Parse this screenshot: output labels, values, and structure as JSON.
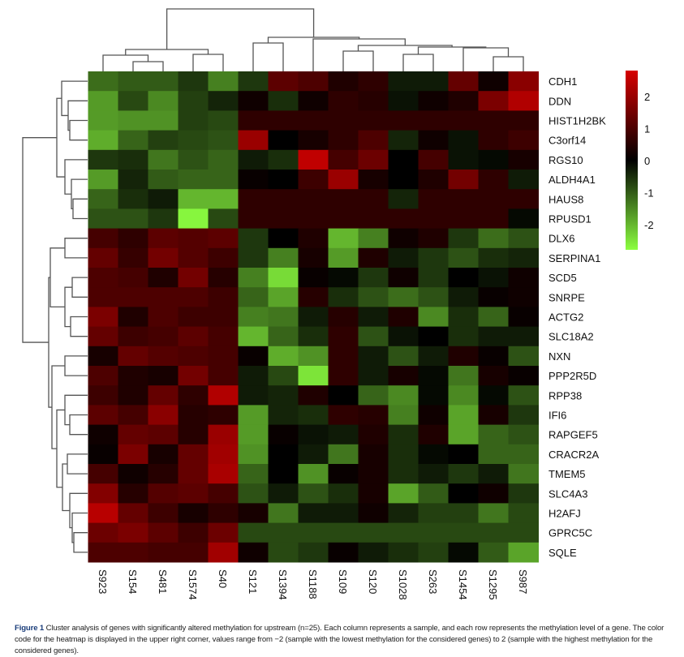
{
  "chart_data": {
    "type": "heatmap",
    "title": "",
    "columns": [
      "S923",
      "S154",
      "S481",
      "S1574",
      "S40",
      "S121",
      "S1394",
      "S1188",
      "S109",
      "S120",
      "S1028",
      "S263",
      "S1454",
      "S1295",
      "S987"
    ],
    "rows": [
      "CDH1",
      "DDN",
      "HIST1H2BK",
      "C3orf14",
      "RGS10",
      "ALDH4A1",
      "HAUS8",
      "RPUSD1",
      "DLX6",
      "SERPINA1",
      "SCD5",
      "SNRPE",
      "ACTG2",
      "SLC18A2",
      "NXN",
      "PPP2R5D",
      "RPP38",
      "IFI6",
      "RAPGEF5",
      "CRACR2A",
      "TMEM5",
      "SLC4A3",
      "H2AFJ",
      "GPRC5C",
      "SQLE"
    ],
    "values": [
      [
        -1.2,
        -1.0,
        -1.0,
        -0.6,
        -1.4,
        -0.6,
        1.2,
        1.0,
        0.4,
        0.6,
        -0.3,
        -0.3,
        1.3,
        0.2,
        1.8
      ],
      [
        -1.7,
        -0.8,
        -1.5,
        -0.7,
        -0.4,
        0.2,
        -0.5,
        0.2,
        0.6,
        0.5,
        -0.2,
        0.2,
        0.4,
        1.6,
        2.3
      ],
      [
        -1.7,
        -1.6,
        -1.6,
        -0.7,
        -0.8,
        0.6,
        0.6,
        0.6,
        0.6,
        0.6,
        0.6,
        0.6,
        0.6,
        0.6,
        0.6
      ],
      [
        -1.9,
        -1.1,
        -0.7,
        -0.8,
        -0.9,
        2.0,
        0.0,
        0.3,
        0.6,
        1.0,
        -0.4,
        0.2,
        -0.2,
        0.6,
        0.8
      ],
      [
        -0.6,
        -0.5,
        -1.3,
        -0.9,
        -1.1,
        -0.3,
        -0.5,
        2.5,
        0.9,
        1.4,
        0.0,
        0.9,
        -0.2,
        -0.1,
        0.3
      ],
      [
        -1.7,
        -0.4,
        -1.0,
        -1.1,
        -1.1,
        0.1,
        0.0,
        0.8,
        2.0,
        0.3,
        0.0,
        0.4,
        1.5,
        0.6,
        -0.3
      ],
      [
        -1.1,
        -0.5,
        -0.3,
        -2.0,
        -2.0,
        0.6,
        0.6,
        0.6,
        0.6,
        0.6,
        -0.4,
        0.6,
        0.6,
        0.6,
        0.6
      ],
      [
        -0.9,
        -0.9,
        -0.6,
        -2.7,
        -0.8,
        0.6,
        0.6,
        0.6,
        0.6,
        0.6,
        0.6,
        0.6,
        0.6,
        0.6,
        -0.1
      ],
      [
        0.9,
        0.6,
        1.2,
        1.1,
        1.2,
        -0.6,
        0.0,
        0.4,
        -2.0,
        -1.4,
        0.2,
        0.4,
        -0.6,
        -1.2,
        -0.9
      ],
      [
        1.3,
        0.7,
        1.5,
        1.1,
        0.8,
        -0.6,
        -1.4,
        0.3,
        -1.7,
        0.4,
        -0.3,
        -0.6,
        -0.9,
        -0.5,
        -0.4
      ],
      [
        1.0,
        0.9,
        0.4,
        1.5,
        0.5,
        -1.4,
        -2.4,
        0.1,
        -0.1,
        -0.6,
        0.2,
        -0.6,
        0.0,
        -0.2,
        0.2
      ],
      [
        1.0,
        1.0,
        1.0,
        1.0,
        0.8,
        -1.1,
        -1.8,
        0.5,
        -0.5,
        -0.9,
        -1.2,
        -0.9,
        -0.3,
        0.1,
        0.2
      ],
      [
        1.6,
        0.4,
        1.0,
        0.8,
        0.8,
        -1.4,
        -1.3,
        -0.3,
        0.5,
        -0.3,
        0.4,
        -1.5,
        -0.5,
        -1.1,
        0.1
      ],
      [
        1.3,
        0.8,
        0.9,
        1.2,
        0.9,
        -2.0,
        -1.1,
        -0.5,
        0.6,
        -0.9,
        -0.2,
        0.0,
        -0.5,
        -0.3,
        -0.3
      ],
      [
        0.3,
        1.3,
        1.1,
        1.0,
        0.9,
        0.1,
        -1.9,
        -1.6,
        0.6,
        -0.3,
        -0.9,
        -0.3,
        0.4,
        0.1,
        -0.9
      ],
      [
        1.0,
        0.4,
        0.3,
        1.5,
        0.9,
        -0.3,
        -0.8,
        -2.5,
        0.6,
        -0.3,
        0.3,
        -0.1,
        -1.3,
        0.3,
        0.1
      ],
      [
        0.8,
        0.4,
        1.3,
        0.6,
        2.3,
        -0.3,
        -0.4,
        0.4,
        0.0,
        -1.1,
        -1.5,
        -0.1,
        -1.5,
        -0.1,
        -0.9
      ],
      [
        1.2,
        0.9,
        1.8,
        0.5,
        0.6,
        -1.7,
        -0.4,
        -0.5,
        0.6,
        0.5,
        -1.4,
        0.2,
        -1.8,
        0.3,
        -0.6
      ],
      [
        0.2,
        1.3,
        1.2,
        0.5,
        2.0,
        -1.7,
        0.1,
        -0.2,
        -0.3,
        0.4,
        -0.5,
        0.4,
        -1.8,
        -1.1,
        -0.9
      ],
      [
        0.1,
        1.6,
        0.3,
        1.3,
        2.1,
        -1.6,
        0.0,
        -0.3,
        -1.3,
        0.3,
        -0.5,
        -0.1,
        0.0,
        -1.1,
        -1.1
      ],
      [
        0.9,
        0.2,
        0.5,
        1.3,
        2.2,
        -1.1,
        0.0,
        -1.6,
        0.1,
        0.3,
        -0.5,
        -0.3,
        -0.6,
        -0.3,
        -1.3
      ],
      [
        1.7,
        0.5,
        1.1,
        1.2,
        0.9,
        -0.9,
        -0.3,
        -0.9,
        -0.5,
        0.3,
        -1.8,
        -1.0,
        0.0,
        0.2,
        -0.6
      ],
      [
        2.4,
        1.3,
        0.8,
        0.3,
        0.6,
        0.3,
        -1.3,
        -0.3,
        -0.3,
        0.2,
        -0.4,
        -0.7,
        -0.7,
        -1.3,
        -0.8
      ],
      [
        1.4,
        1.6,
        1.2,
        0.8,
        1.4,
        -0.8,
        -0.8,
        -0.8,
        -0.8,
        -0.8,
        -0.8,
        -0.8,
        -0.8,
        -0.8,
        -0.8
      ],
      [
        1.0,
        1.0,
        0.9,
        0.9,
        2.1,
        0.2,
        -0.8,
        -0.6,
        0.1,
        -0.3,
        -0.5,
        -0.7,
        -0.1,
        -1.0,
        -1.8
      ]
    ],
    "color_scale": {
      "range": [
        -2.8,
        2.8
      ],
      "low": "#8cff40",
      "mid": "#000000",
      "high": "#d70000",
      "ticks": [
        2,
        1,
        0,
        -1,
        -2
      ],
      "tick_labels": [
        "2",
        "1",
        "0",
        "-1",
        "-2"
      ],
      "placement": "top-right"
    },
    "row_dendrogram": true,
    "column_dendrogram": true
  },
  "caption": {
    "label": "Figure 1",
    "text": "Cluster analysis of genes with significantly altered methylation for upstream (n=25). Each column represents a sample, and each row represents the methylation level of a gene. The color code for the heatmap is displayed in the upper right corner, values range from −2 (sample with the lowest methylation for the considered genes) to 2 (sample with the highest methylation for the considered genes)."
  }
}
